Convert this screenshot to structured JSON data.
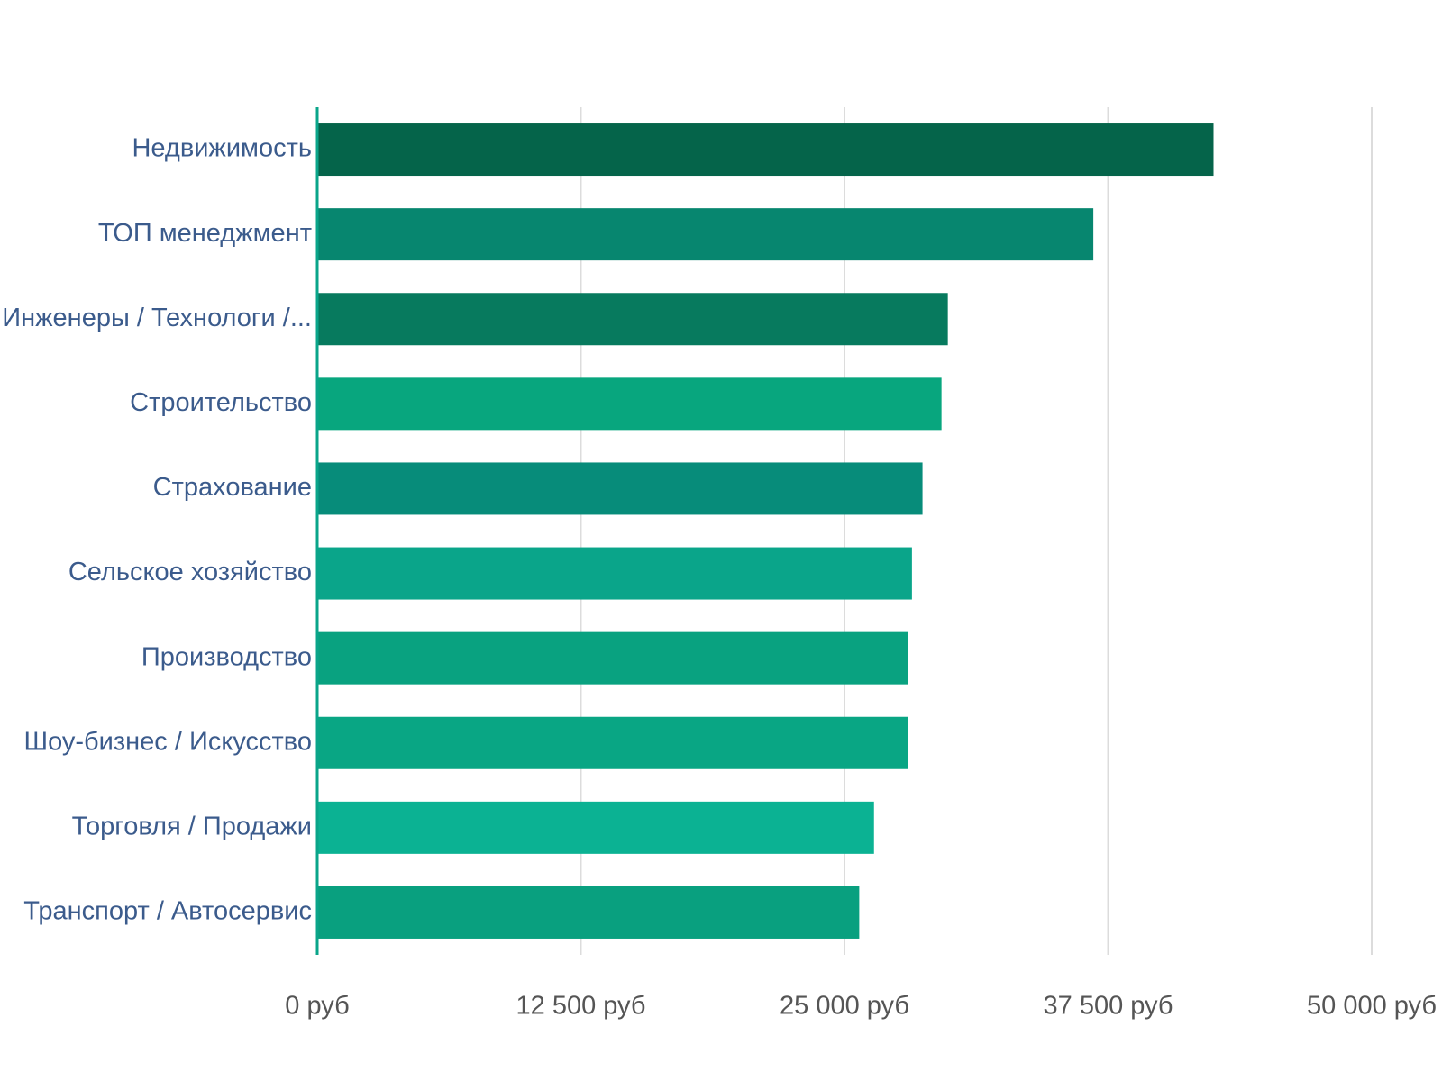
{
  "chart_data": {
    "type": "barh",
    "categories": [
      "Недвижимость",
      "ТОП менеджмент",
      "Инженеры / Технологи /...",
      "Строительство",
      "Страхование",
      "Сельское хозяйство",
      "Производство",
      "Шоу-бизнес / Искусство",
      "Торговля / Продажи",
      "Транспорт / Автосервис"
    ],
    "values": [
      42500,
      36800,
      29900,
      29600,
      28700,
      28200,
      28000,
      28000,
      26400,
      25700
    ],
    "colors": [
      "#05644a",
      "#07866f",
      "#077a5e",
      "#08a67e",
      "#078c7a",
      "#0aa58a",
      "#09a280",
      "#09a684",
      "#0bb293",
      "#09a07f"
    ],
    "xlim": [
      0,
      50000
    ],
    "xticks": [
      {
        "value": 0,
        "label": "0 руб"
      },
      {
        "value": 12500,
        "label": "12 500 руб"
      },
      {
        "value": 25000,
        "label": "25 000 руб"
      },
      {
        "value": 37500,
        "label": "37 500 руб"
      },
      {
        "value": 50000,
        "label": "50 000 руб"
      }
    ],
    "grid": true
  }
}
